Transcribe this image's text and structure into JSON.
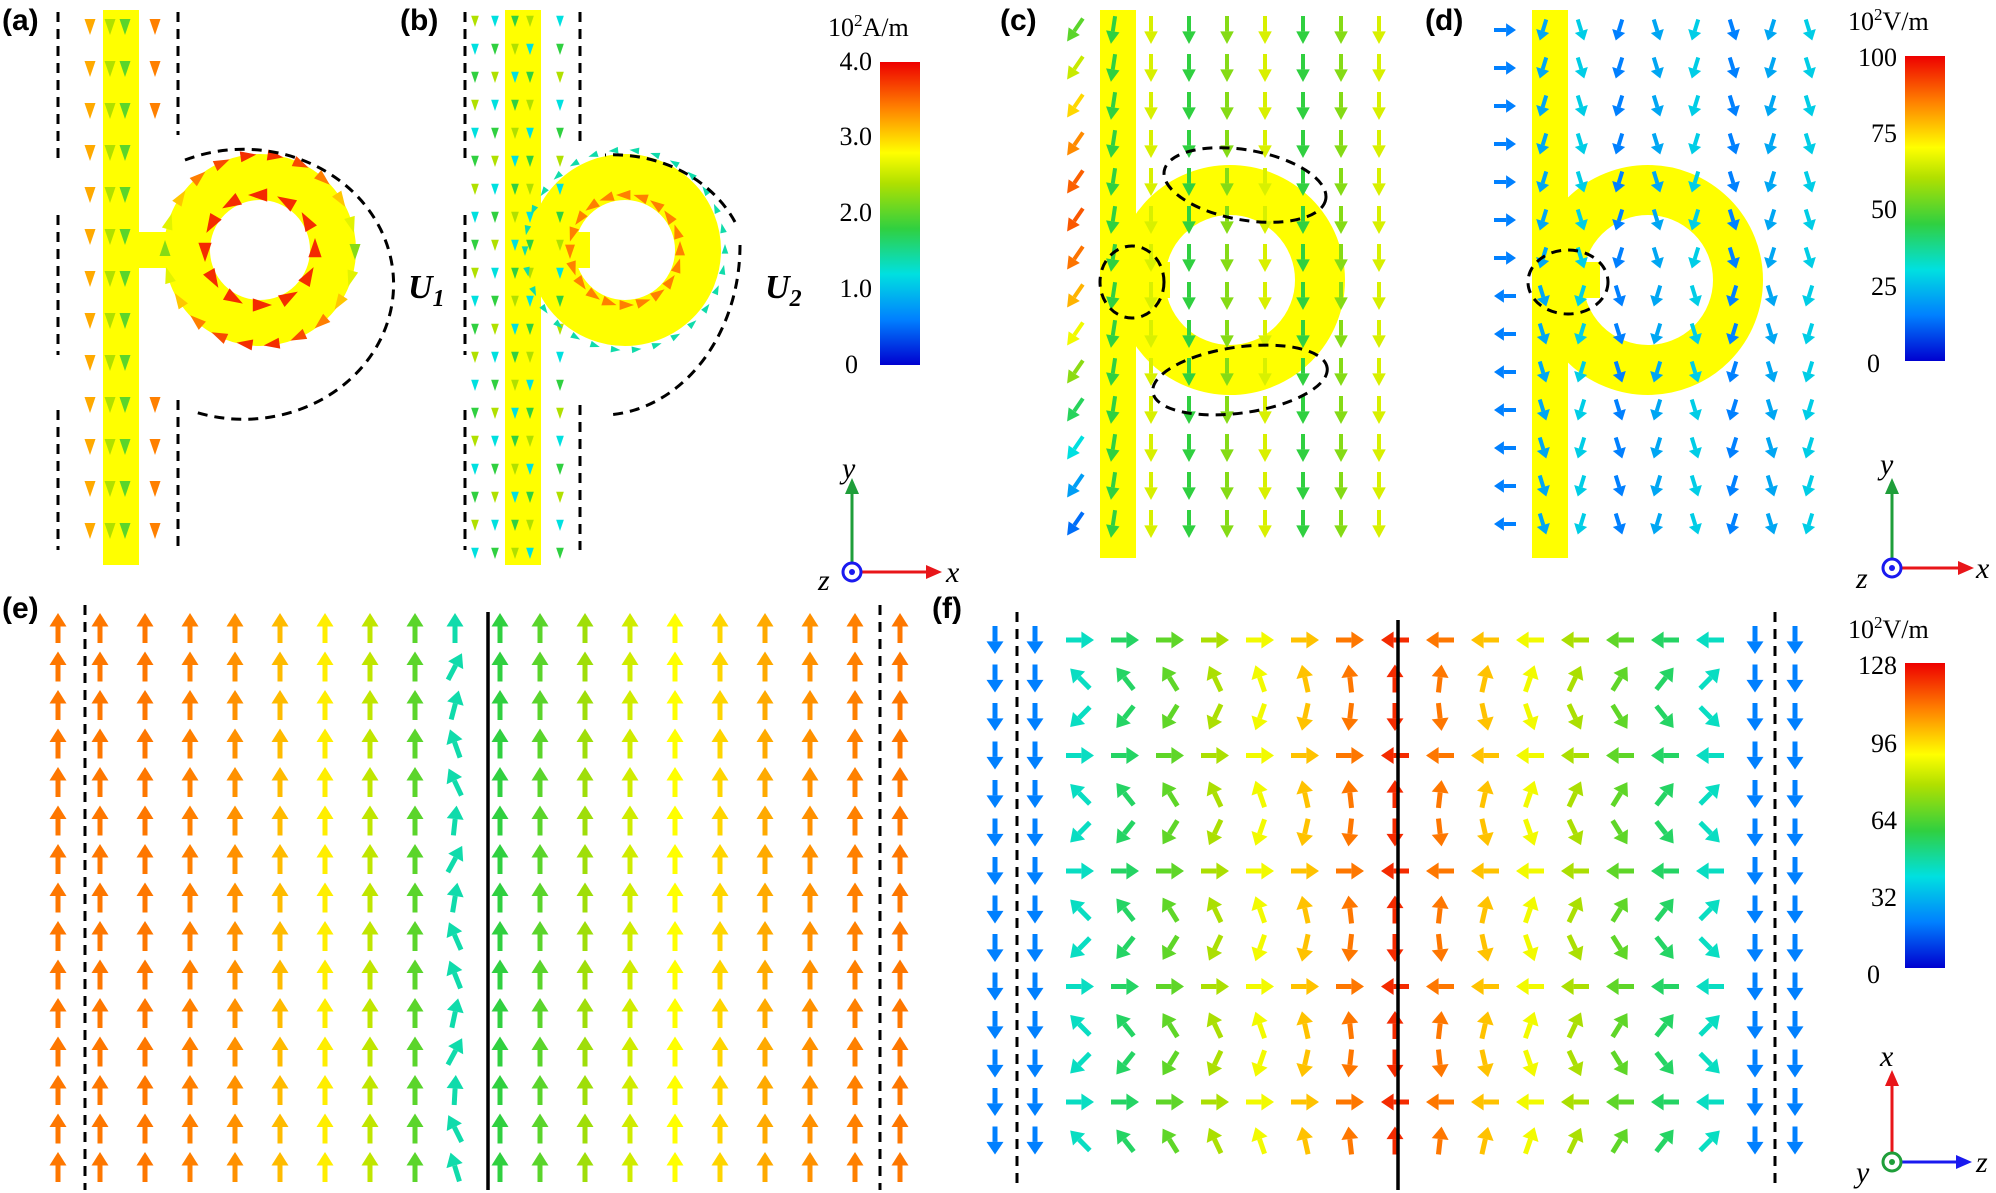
{
  "panels": {
    "a": {
      "label": "(a)"
    },
    "b": {
      "label": "(b)",
      "u1": "U",
      "u1_sub": "1",
      "u2": "U",
      "u2_sub": "2"
    },
    "c": {
      "label": "(c)"
    },
    "d": {
      "label": "(d)"
    },
    "e": {
      "label": "(e)"
    },
    "f": {
      "label": "(f)"
    }
  },
  "colorbars": {
    "current": {
      "unit_prefix": "10",
      "unit_exp": "2",
      "unit_rest": "A/m",
      "ticks": [
        "4.0",
        "3.0",
        "2.0",
        "1.0",
        "0"
      ]
    },
    "efield_cd": {
      "unit_prefix": "10",
      "unit_exp": "2",
      "unit_rest": "V/m",
      "ticks": [
        "100",
        "75",
        "50",
        "25",
        "0"
      ]
    },
    "efield_f": {
      "unit_prefix": "10",
      "unit_exp": "2",
      "unit_rest": "V/m",
      "ticks": [
        "128",
        "96",
        "64",
        "32",
        "0"
      ]
    }
  },
  "axes": {
    "top": {
      "vertical": "y",
      "horizontal": "x",
      "out": "z"
    },
    "top2": {
      "vertical": "y",
      "horizontal": "x",
      "out": "z"
    },
    "bottom": {
      "vertical": "x",
      "horizontal": "z",
      "out": "y"
    }
  },
  "colors": {
    "strip": "#ffff00",
    "axis_red": "#e8161a",
    "axis_green": "#1f9e3a",
    "axis_blue": "#1a1aef"
  }
}
